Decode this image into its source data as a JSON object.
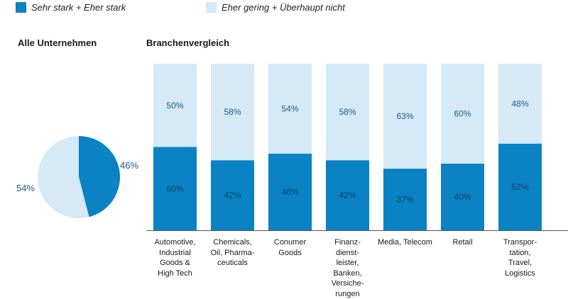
{
  "chart_data": [
    {
      "type": "pie",
      "title": "Alle Unternehmen",
      "slices": [
        {
          "label": "Sehr stark + Eher stark",
          "value": 46,
          "display": "46%",
          "color": "#0a82c4"
        },
        {
          "label": "Eher gering + Überhaupt nicht",
          "value": 54,
          "display": "54%",
          "color": "#d6e9f7"
        }
      ]
    },
    {
      "type": "bar",
      "stacked": true,
      "percent": true,
      "title": "Branchenvergleich",
      "categories": [
        "Automotive, Industrial Goods & High Tech",
        "Chemicals, Oil, Pharma-ceuticals",
        "Conumer Goods",
        "Finanz-dienst-leister, Banken, Versiche-rungen",
        "Media, Telecom",
        "Retail",
        "Transpor-tation, Travel, Logistics"
      ],
      "category_lines": [
        [
          "Automotive,",
          "Industrial",
          "Goods &",
          "High Tech"
        ],
        [
          "Chemicals,",
          "Oil, Pharma-",
          "ceuticals"
        ],
        [
          "Conumer",
          "Goods"
        ],
        [
          "Finanz-",
          "dienst-",
          "leister,",
          "Banken,",
          "Versiche-",
          "rungen"
        ],
        [
          "Media, Telecom"
        ],
        [
          "Retail"
        ],
        [
          "Transpor-",
          "tation,",
          "Travel,",
          "Logistics"
        ]
      ],
      "series": [
        {
          "name": "Sehr stark + Eher stark",
          "color": "#0a82c4",
          "values": [
            50,
            42,
            46,
            42,
            37,
            40,
            52
          ]
        },
        {
          "name": "Eher gering + Überhaupt nicht",
          "color": "#d6e9f7",
          "values": [
            50,
            58,
            54,
            58,
            63,
            60,
            48
          ]
        }
      ],
      "ylim": [
        0,
        100
      ]
    }
  ],
  "legend": [
    {
      "label": "Sehr stark + Eher stark",
      "color": "#0a82c4"
    },
    {
      "label": "Eher gering + Überhaupt nicht",
      "color": "#d6e9f7"
    }
  ],
  "headings": {
    "pie": "Alle Unternehmen",
    "bars": "Branchenvergleich"
  }
}
